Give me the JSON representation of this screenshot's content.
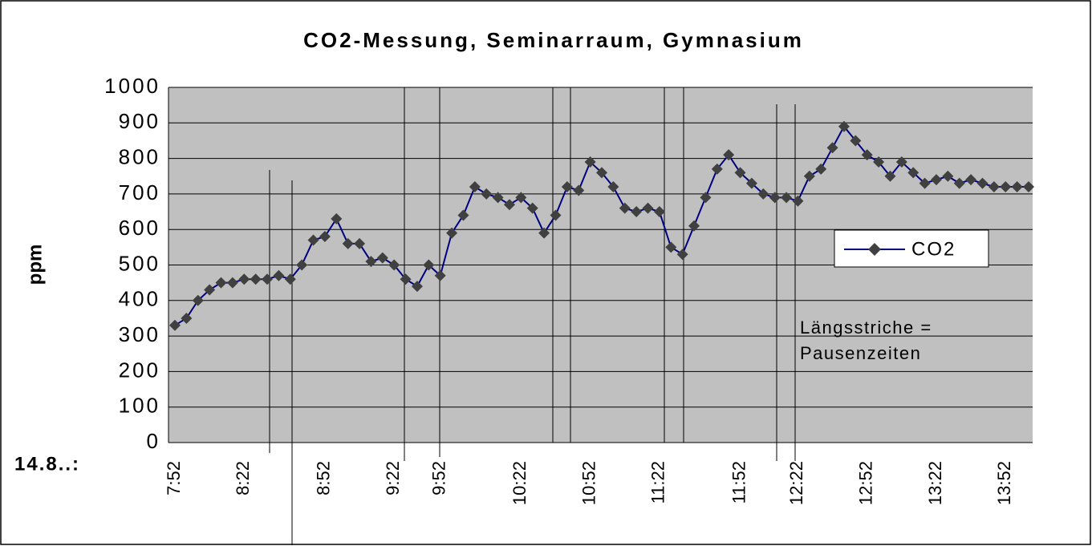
{
  "chart_data": {
    "type": "line",
    "title": "CO2-Messung, Seminarraum, Gymnasium",
    "y_label": "ppm",
    "x_label": "14.8..:",
    "annotation": [
      "Längsstriche =",
      "Pausenzeiten"
    ],
    "categories": [
      "7:52",
      null,
      null,
      null,
      null,
      null,
      "8:22",
      null,
      null,
      null,
      null,
      null,
      null,
      "8:52",
      null,
      null,
      null,
      null,
      null,
      "9:22",
      null,
      null,
      null,
      "9:52",
      null,
      null,
      null,
      null,
      null,
      null,
      "10:22",
      null,
      null,
      null,
      null,
      null,
      "10:52",
      null,
      null,
      null,
      null,
      null,
      "11:22",
      null,
      null,
      null,
      null,
      null,
      null,
      "11:52",
      null,
      null,
      null,
      null,
      "12:22",
      null,
      null,
      null,
      null,
      null,
      "12:52",
      null,
      null,
      null,
      null,
      null,
      "13:22",
      null,
      null,
      null,
      null,
      null,
      "13:52",
      null,
      null
    ],
    "series": [
      {
        "name": "CO2",
        "color": "#000080",
        "marker_color": "#404040",
        "values": [
          330,
          350,
          400,
          430,
          450,
          450,
          460,
          460,
          460,
          470,
          460,
          500,
          570,
          580,
          630,
          560,
          560,
          510,
          520,
          500,
          460,
          440,
          500,
          470,
          590,
          640,
          720,
          700,
          690,
          670,
          690,
          660,
          590,
          640,
          720,
          710,
          790,
          760,
          720,
          660,
          650,
          660,
          650,
          550,
          530,
          610,
          690,
          770,
          810,
          760,
          730,
          700,
          690,
          690,
          680,
          750,
          770,
          830,
          890,
          850,
          810,
          790,
          750,
          790,
          760,
          730,
          740,
          750,
          730,
          740,
          730,
          720,
          720,
          720,
          720
        ]
      }
    ],
    "ylim": [
      0,
      1000
    ],
    "yticks": [
      0,
      100,
      200,
      300,
      400,
      500,
      600,
      700,
      800,
      900,
      1000
    ],
    "grid": true,
    "legend": "right"
  }
}
